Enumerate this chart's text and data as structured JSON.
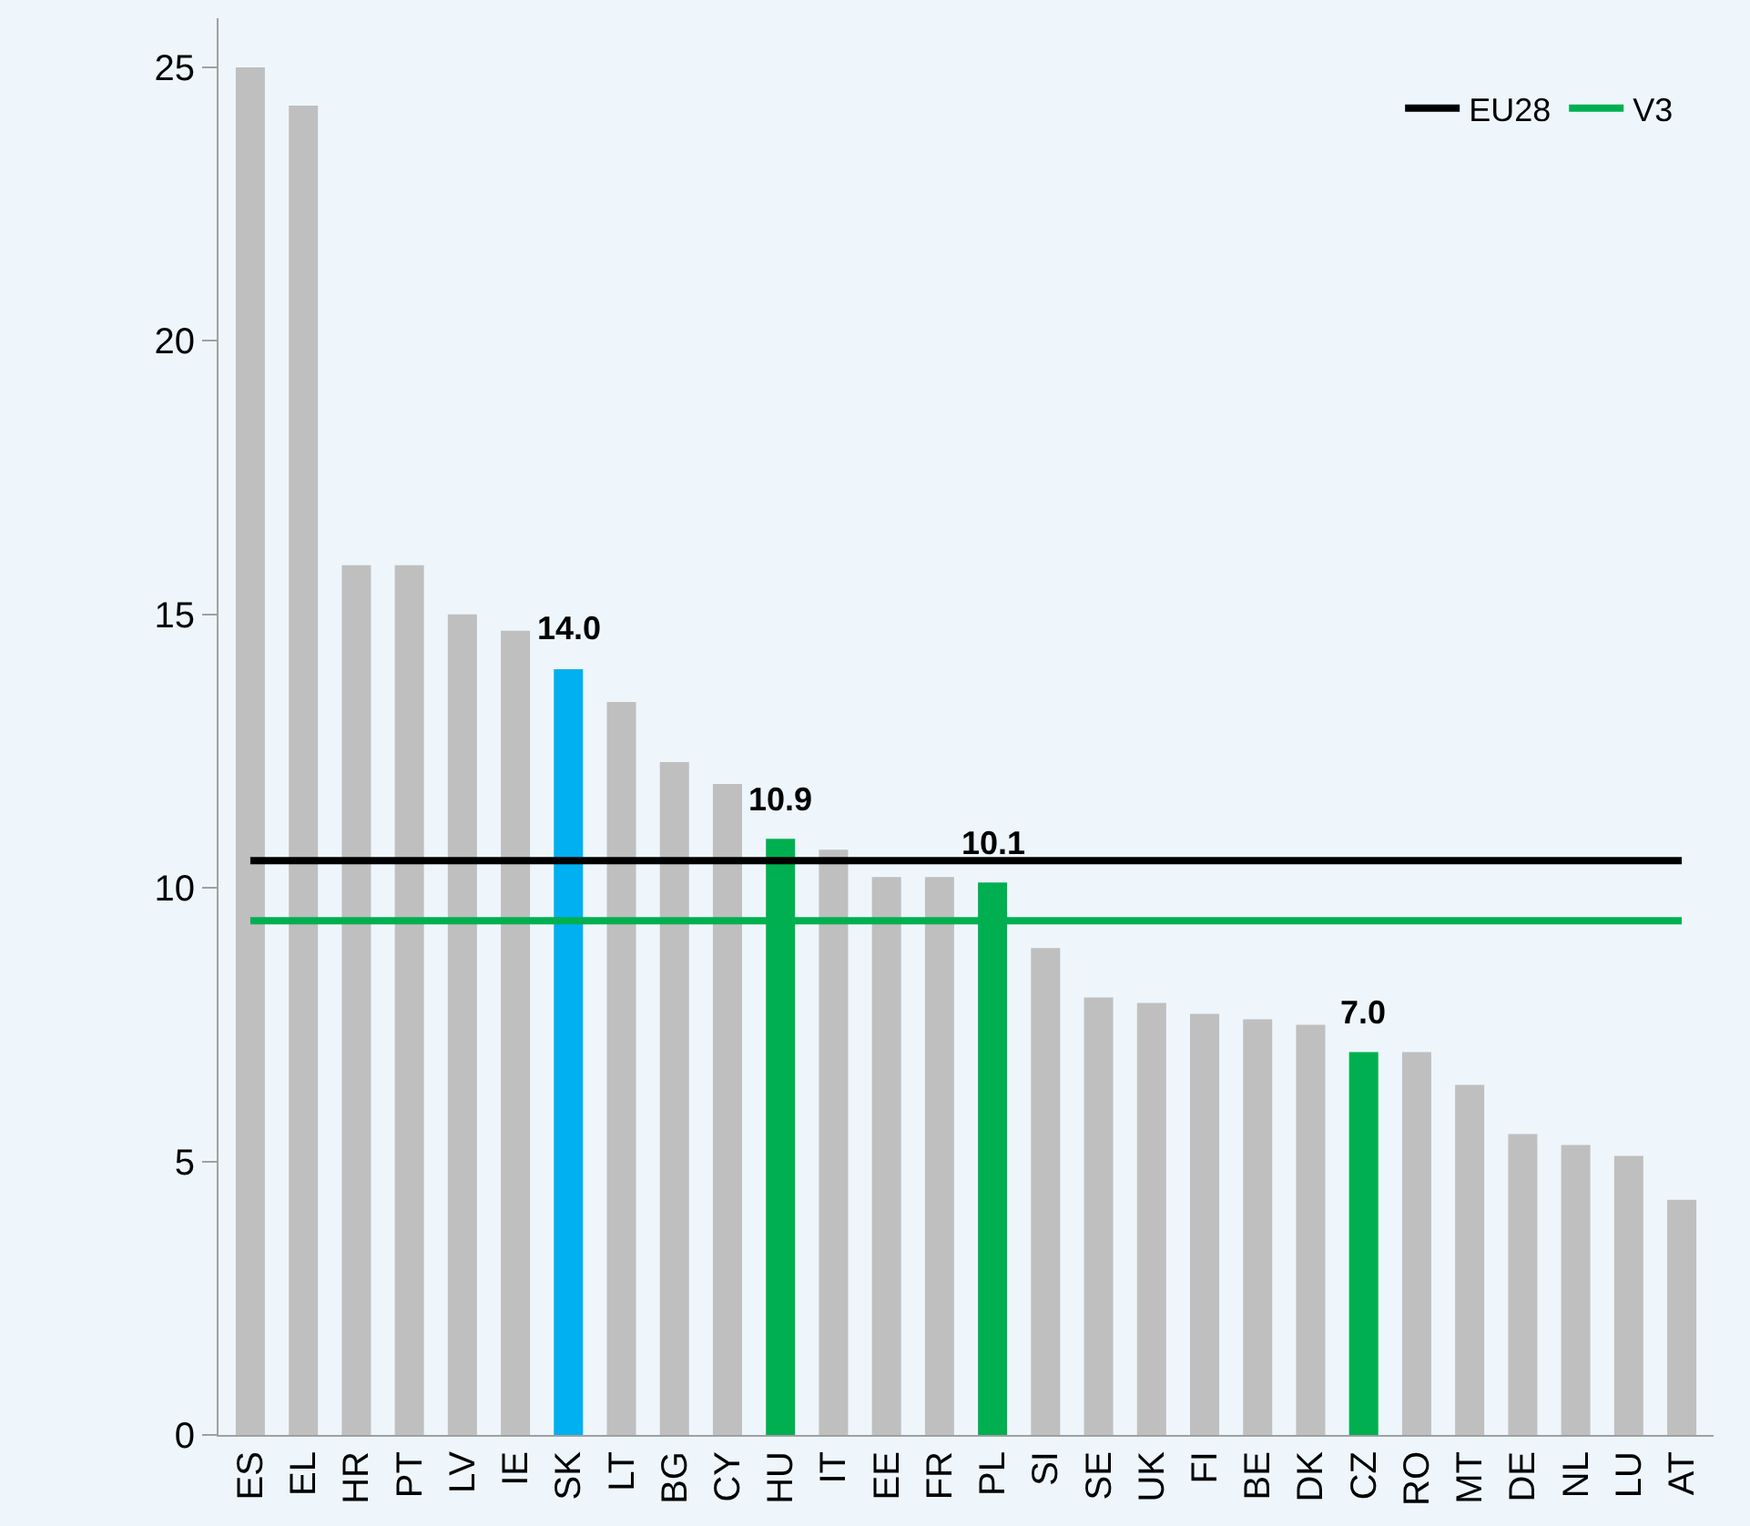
{
  "chart_data": {
    "type": "bar",
    "categories": [
      "ES",
      "EL",
      "HR",
      "PT",
      "LV",
      "IE",
      "SK",
      "LT",
      "BG",
      "CY",
      "HU",
      "IT",
      "EE",
      "FR",
      "PL",
      "SI",
      "SE",
      "UK",
      "FI",
      "BE",
      "DK",
      "CZ",
      "RO",
      "MT",
      "DE",
      "NL",
      "LU",
      "AT"
    ],
    "series": [
      {
        "values": [
          25.0,
          24.3,
          15.9,
          15.9,
          15.0,
          14.7,
          14.0,
          13.4,
          12.3,
          11.9,
          10.9,
          10.7,
          10.2,
          10.2,
          10.1,
          8.9,
          8.0,
          7.9,
          7.7,
          7.6,
          7.5,
          7.0,
          7.0,
          6.4,
          5.5,
          5.3,
          5.1,
          4.3
        ],
        "colors": [
          "#bfbfbf",
          "#bfbfbf",
          "#bfbfbf",
          "#bfbfbf",
          "#bfbfbf",
          "#bfbfbf",
          "#00b0f0",
          "#bfbfbf",
          "#bfbfbf",
          "#bfbfbf",
          "#00b050",
          "#bfbfbf",
          "#bfbfbf",
          "#bfbfbf",
          "#00b050",
          "#bfbfbf",
          "#bfbfbf",
          "#bfbfbf",
          "#bfbfbf",
          "#bfbfbf",
          "#bfbfbf",
          "#00b050",
          "#bfbfbf",
          "#bfbfbf",
          "#bfbfbf",
          "#bfbfbf",
          "#bfbfbf",
          "#bfbfbf"
        ],
        "value_labels": [
          null,
          null,
          null,
          null,
          null,
          null,
          "14.0",
          null,
          null,
          null,
          "10.9",
          null,
          null,
          null,
          "10.1",
          null,
          null,
          null,
          null,
          null,
          null,
          "7.0",
          null,
          null,
          null,
          null,
          null,
          null
        ]
      },
      {
        "type": "line",
        "name": "EU28",
        "color": "#000000",
        "values": [
          10.5,
          10.5,
          10.5,
          10.5,
          10.5,
          10.5,
          10.5,
          10.5,
          10.5,
          10.5,
          10.5,
          10.5,
          10.5,
          10.5,
          10.5,
          10.5,
          10.5,
          10.5,
          10.5,
          10.5,
          10.5,
          10.5,
          10.5,
          10.5,
          10.5,
          10.5,
          10.5,
          10.5
        ]
      },
      {
        "type": "line",
        "name": "V3",
        "color": "#00b050",
        "values": [
          9.4,
          9.4,
          9.4,
          9.4,
          9.4,
          9.4,
          9.4,
          9.4,
          9.4,
          9.4,
          9.4,
          9.4,
          9.4,
          9.4,
          9.4,
          9.4,
          9.4,
          9.4,
          9.4,
          9.4,
          9.4,
          9.4,
          9.4,
          9.4,
          9.4,
          9.4,
          9.4,
          9.4
        ]
      }
    ],
    "ylim": [
      0,
      25.9
    ],
    "yticks": [
      0,
      5,
      10,
      15,
      20,
      25
    ],
    "grid": false,
    "legend": "top right",
    "marker": "none",
    "line_style": "solid"
  }
}
